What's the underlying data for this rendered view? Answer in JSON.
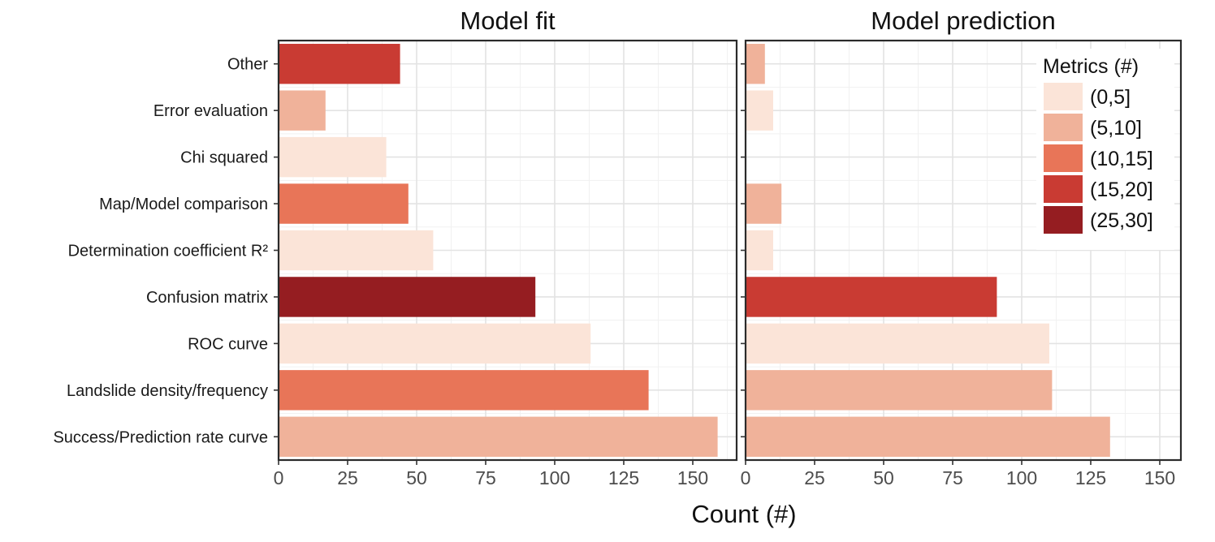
{
  "chart_data": {
    "type": "bar",
    "orientation": "horizontal",
    "xlabel": "Count (#)",
    "ylabel": "",
    "xlim": [
      0,
      160
    ],
    "xticks": [
      0,
      25,
      50,
      75,
      100,
      125,
      150
    ],
    "categories": [
      "Other",
      "Error evaluation",
      "Chi squared",
      "Map/Model comparison",
      "Determination coefficient R²",
      "Confusion matrix",
      "ROC curve",
      "Landslide density/frequency",
      "Success/Prediction rate curve"
    ],
    "panels": [
      {
        "title": "Model fit",
        "values": [
          44,
          17,
          39,
          47,
          56,
          93,
          113,
          134,
          159
        ],
        "metrics_bins": [
          "(15,20]",
          "(5,10]",
          "(0,5]",
          "(10,15]",
          "(0,5]",
          "(25,30]",
          "(0,5]",
          "(10,15]",
          "(5,10]"
        ]
      },
      {
        "title": "Model prediction",
        "values": [
          7,
          10,
          null,
          13,
          10,
          91,
          110,
          111,
          132
        ],
        "metrics_bins": [
          "(5,10]",
          "(0,5]",
          null,
          "(5,10]",
          "(0,5]",
          "(15,20]",
          "(0,5]",
          "(5,10]",
          "(5,10]"
        ]
      }
    ],
    "legend": {
      "title": "Metrics (#)",
      "placement": "top-right",
      "items": [
        {
          "label": "(0,5]",
          "color": "#fbe4d8"
        },
        {
          "label": "(5,10]",
          "color": "#f0b29a"
        },
        {
          "label": "(10,15]",
          "color": "#e87558"
        },
        {
          "label": "(15,20]",
          "color": "#c93b33"
        },
        {
          "label": "(25,30]",
          "color": "#951d21"
        }
      ]
    },
    "grid": true
  }
}
